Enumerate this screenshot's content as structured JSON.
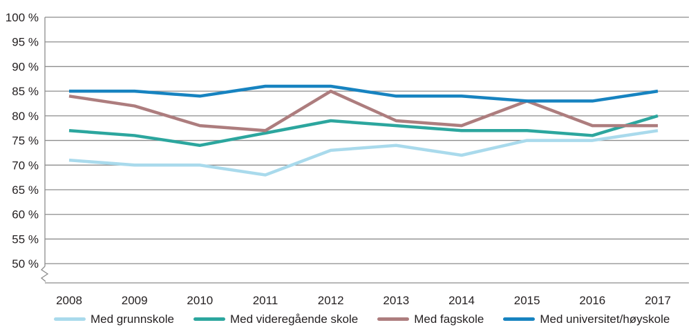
{
  "figure": {
    "background": "#ffffff"
  },
  "styles": {
    "grid_color": "#8c8c8c",
    "axis_color": "#8c8c8c",
    "text_color": "#231f20",
    "line_width": 4.5
  },
  "chart_data": {
    "type": "line",
    "title": "",
    "xlabel": "",
    "ylabel": "",
    "categories": [
      "2008",
      "2009",
      "2010",
      "2011",
      "2012",
      "2013",
      "2014",
      "2015",
      "2016",
      "2017"
    ],
    "yticks": [
      "100 %",
      "95 %",
      "90 %",
      "85 %",
      "80 %",
      "75 %",
      "70 %",
      "65 %",
      "60 %",
      "55 %",
      "50 %"
    ],
    "ylim": [
      50,
      100
    ],
    "ytick_step": 5,
    "ytick_suffix": " %",
    "grid": true,
    "axis_break": true,
    "legend_position": "bottom",
    "series": [
      {
        "name": "Med grunnskole",
        "color": "#a9daec",
        "values": [
          71,
          70,
          70,
          68,
          73,
          74,
          72,
          75,
          75,
          77
        ]
      },
      {
        "name": "Med videregående skole",
        "color": "#2ca69e",
        "values": [
          77,
          76,
          74,
          76.5,
          79,
          78,
          77,
          77,
          76,
          80
        ]
      },
      {
        "name": "Med fagskole",
        "color": "#ad7d7e",
        "values": [
          84,
          82,
          78,
          77,
          85,
          79,
          78,
          83,
          78,
          78
        ]
      },
      {
        "name": "Med universitet/høyskole",
        "color": "#1783c0",
        "values": [
          85,
          85,
          84,
          86,
          86,
          84,
          84,
          83,
          83,
          85
        ]
      }
    ]
  }
}
